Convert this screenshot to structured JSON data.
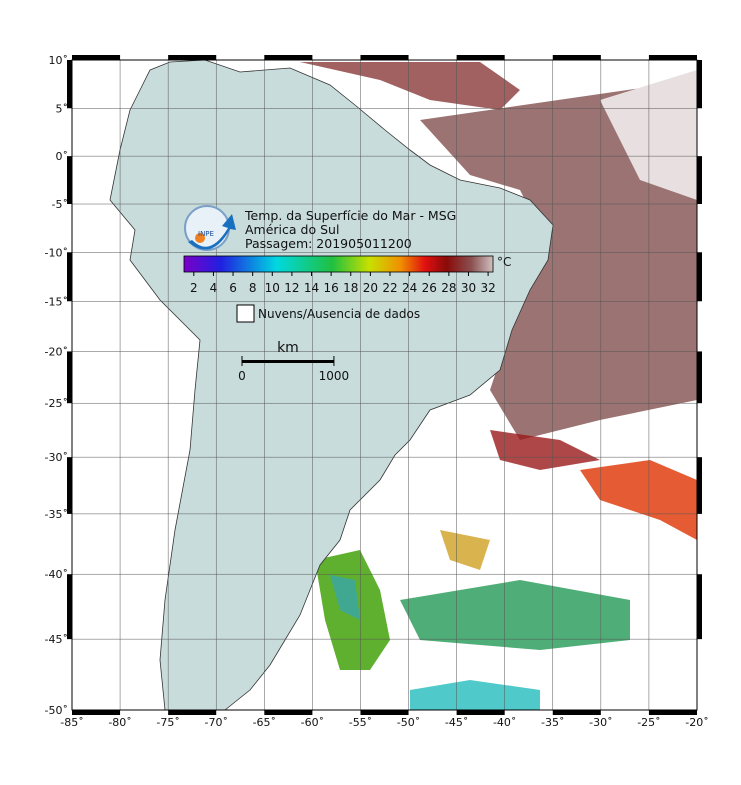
{
  "title_lines": [
    "Temp. da Superfície do Mar - MSG",
    "América do Sul",
    "Passagem: 201905011200"
  ],
  "colorbar": {
    "unit": "°C",
    "range": [
      1,
      32.5
    ],
    "ticks": [
      2,
      4,
      6,
      8,
      10,
      12,
      14,
      16,
      18,
      20,
      22,
      24,
      26,
      28,
      30,
      32
    ]
  },
  "legend": {
    "label": "Nuvens/Ausencia de dados"
  },
  "scale_bar": {
    "unit": "km",
    "ticks": [
      0,
      1000
    ]
  },
  "axes": {
    "lon_range": [
      -85,
      -20
    ],
    "lat_range": [
      -50,
      10
    ],
    "lon_ticks": [
      {
        "value": -85,
        "label": "-85˚"
      },
      {
        "value": -80,
        "label": "-80˚"
      },
      {
        "value": -75,
        "label": "-75˚"
      },
      {
        "value": -70,
        "label": "-70˚"
      },
      {
        "value": -65,
        "label": "-65˚"
      },
      {
        "value": -60,
        "label": "-60˚"
      },
      {
        "value": -55,
        "label": "-55˚"
      },
      {
        "value": -50,
        "label": "-50˚"
      },
      {
        "value": -45,
        "label": "-45˚"
      },
      {
        "value": -40,
        "label": "-40˚"
      },
      {
        "value": -35,
        "label": "-35˚"
      },
      {
        "value": -30,
        "label": "-30˚"
      },
      {
        "value": -25,
        "label": "-25˚"
      },
      {
        "value": -20,
        "label": "-20˚"
      }
    ],
    "lat_ticks": [
      {
        "value": 10,
        "label": "10˚"
      },
      {
        "value": 5,
        "label": "5˚"
      },
      {
        "value": 0,
        "label": "0˚"
      },
      {
        "value": -5,
        "label": "-5˚"
      },
      {
        "value": -10,
        "label": "-10˚"
      },
      {
        "value": -15,
        "label": "-15˚"
      },
      {
        "value": -20,
        "label": "-20˚"
      },
      {
        "value": -25,
        "label": "-25˚"
      },
      {
        "value": -30,
        "label": "-30˚"
      },
      {
        "value": -35,
        "label": "-35˚"
      },
      {
        "value": -40,
        "label": "-40˚"
      },
      {
        "value": -45,
        "label": "-45˚"
      },
      {
        "value": -50,
        "label": "-50˚"
      }
    ]
  }
}
